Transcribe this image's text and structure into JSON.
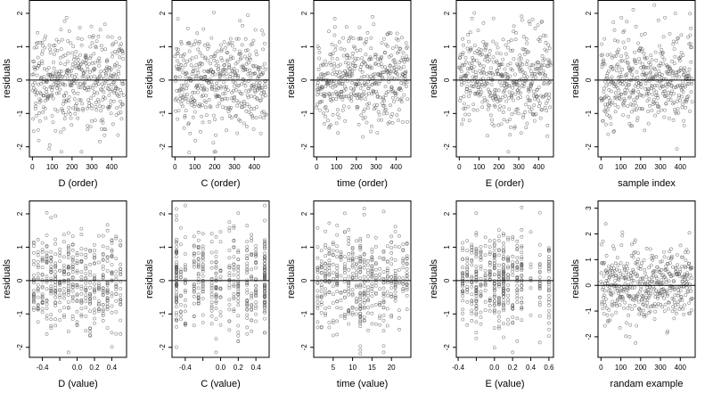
{
  "figure": {
    "n_points": 460,
    "point_color": "#555555",
    "line_color": "#000000"
  },
  "chart_data": [
    {
      "type": "scatter",
      "xlabel": "D (order)",
      "ylabel": "residuals",
      "xlim": [
        -15,
        475
      ],
      "ylim": [
        -2.3,
        2.4
      ],
      "xticks": [
        0,
        100,
        200,
        300,
        400
      ],
      "xtick_labels": [
        "0",
        "100",
        "200",
        "300",
        "400"
      ],
      "yticks": [
        -2,
        -1,
        0,
        1,
        2
      ],
      "ytick_labels": [
        "-2",
        "-1",
        "0",
        "1",
        "2"
      ],
      "hline": 0,
      "x_mode": "index",
      "x_range": [
        0,
        460
      ]
    },
    {
      "type": "scatter",
      "xlabel": "C (order)",
      "ylabel": "residuals",
      "xlim": [
        -15,
        475
      ],
      "ylim": [
        -2.3,
        2.4
      ],
      "xticks": [
        0,
        100,
        200,
        300,
        400
      ],
      "xtick_labels": [
        "0",
        "100",
        "200",
        "300",
        "400"
      ],
      "yticks": [
        -2,
        -1,
        0,
        1,
        2
      ],
      "ytick_labels": [
        "-2",
        "-1",
        "0",
        "1",
        "2"
      ],
      "hline": 0,
      "x_mode": "index",
      "x_range": [
        0,
        460
      ]
    },
    {
      "type": "scatter",
      "xlabel": "time (order)",
      "ylabel": "residuals",
      "xlim": [
        -15,
        475
      ],
      "ylim": [
        -2.3,
        2.4
      ],
      "xticks": [
        0,
        100,
        200,
        300,
        400
      ],
      "xtick_labels": [
        "0",
        "100",
        "200",
        "300",
        "400"
      ],
      "yticks": [
        -2,
        -1,
        0,
        1,
        2
      ],
      "ytick_labels": [
        "-2",
        "-1",
        "0",
        "1",
        "2"
      ],
      "hline": 0,
      "x_mode": "index",
      "x_range": [
        0,
        460
      ]
    },
    {
      "type": "scatter",
      "xlabel": "E (order)",
      "ylabel": "residuals",
      "xlim": [
        -15,
        475
      ],
      "ylim": [
        -2.3,
        2.4
      ],
      "xticks": [
        0,
        100,
        200,
        300,
        400
      ],
      "xtick_labels": [
        "0",
        "100",
        "200",
        "300",
        "400"
      ],
      "yticks": [
        -2,
        -1,
        0,
        1,
        2
      ],
      "ytick_labels": [
        "-2",
        "-1",
        "0",
        "1",
        "2"
      ],
      "hline": 0,
      "x_mode": "index",
      "x_range": [
        0,
        460
      ]
    },
    {
      "type": "scatter",
      "xlabel": "sample index",
      "ylabel": "residuals",
      "xlim": [
        -15,
        475
      ],
      "ylim": [
        -2.3,
        2.4
      ],
      "xticks": [
        0,
        100,
        200,
        300,
        400
      ],
      "xtick_labels": [
        "0",
        "100",
        "200",
        "300",
        "400"
      ],
      "yticks": [
        -2,
        -1,
        0,
        1,
        2
      ],
      "ytick_labels": [
        "-2",
        "-1",
        "0",
        "1",
        "2"
      ],
      "hline": 0,
      "x_mode": "index",
      "x_range": [
        0,
        460
      ]
    },
    {
      "type": "scatter",
      "xlabel": "D (value)",
      "ylabel": "residuals",
      "xlim": [
        -0.55,
        0.57
      ],
      "ylim": [
        -2.3,
        2.4
      ],
      "xticks": [
        -0.4,
        -0.2,
        0.0,
        0.2,
        0.4
      ],
      "xtick_labels": [
        "-0.4",
        "",
        "0.0",
        "0.2",
        "0.4"
      ],
      "yticks": [
        -2,
        -1,
        0,
        1,
        2
      ],
      "ytick_labels": [
        "-2",
        "-1",
        "0",
        "1",
        "2"
      ],
      "hline": 0,
      "x_mode": "discrete",
      "x_values": [
        -0.5,
        -0.45,
        -0.4,
        -0.35,
        -0.3,
        -0.25,
        -0.2,
        -0.15,
        -0.1,
        -0.05,
        0.0,
        0.05,
        0.1,
        0.15,
        0.2,
        0.25,
        0.3,
        0.35,
        0.4,
        0.45,
        0.5
      ]
    },
    {
      "type": "scatter",
      "xlabel": "C (value)",
      "ylabel": "residuals",
      "xlim": [
        -0.55,
        0.55
      ],
      "ylim": [
        -2.3,
        2.4
      ],
      "xticks": [
        -0.4,
        -0.2,
        0.0,
        0.2,
        0.4
      ],
      "xtick_labels": [
        "-0.4",
        "",
        "0.0",
        "0.2",
        "0.4"
      ],
      "yticks": [
        -2,
        -1,
        0,
        1,
        2
      ],
      "ytick_labels": [
        "-2",
        "-1",
        "0",
        "1",
        "2"
      ],
      "hline": 0,
      "x_mode": "discrete",
      "x_values": [
        -0.5,
        -0.5,
        -0.5,
        -0.45,
        -0.4,
        -0.3,
        -0.25,
        -0.2,
        -0.1,
        -0.05,
        0.0,
        0.1,
        0.15,
        0.2,
        0.3,
        0.35,
        0.4,
        0.5,
        0.5,
        0.5
      ]
    },
    {
      "type": "scatter",
      "xlabel": "time (value)",
      "ylabel": "residuals",
      "xlim": [
        0,
        25
      ],
      "ylim": [
        -2.3,
        2.4
      ],
      "xticks": [
        5,
        10,
        15,
        20
      ],
      "xtick_labels": [
        "5",
        "10",
        "15",
        "20"
      ],
      "yticks": [
        -2,
        -1,
        0,
        1,
        2
      ],
      "ytick_labels": [
        "-2",
        "-1",
        "0",
        "1",
        "2"
      ],
      "hline": 0,
      "x_mode": "discrete",
      "x_values": [
        1,
        2,
        3,
        4,
        5,
        6,
        7,
        8,
        9,
        10,
        11,
        12,
        12,
        13,
        14,
        15,
        16,
        17,
        18,
        19,
        20,
        21,
        22,
        23,
        24
      ]
    },
    {
      "type": "scatter",
      "xlabel": "E (value)",
      "ylabel": "residuals",
      "xlim": [
        -0.42,
        0.65
      ],
      "ylim": [
        -2.3,
        2.4
      ],
      "xticks": [
        -0.4,
        -0.2,
        0.0,
        0.2,
        0.4,
        0.6
      ],
      "xtick_labels": [
        "-0.4",
        "",
        "0.0",
        "0.2",
        "0.4",
        "0.6"
      ],
      "yticks": [
        -2,
        -1,
        0,
        1,
        2
      ],
      "ytick_labels": [
        "-2",
        "-1",
        "0",
        "1",
        "2"
      ],
      "hline": 0,
      "x_mode": "discrete",
      "x_values": [
        -0.35,
        -0.3,
        -0.25,
        -0.2,
        -0.2,
        -0.15,
        -0.1,
        -0.05,
        0.0,
        0.0,
        0.05,
        0.1,
        0.1,
        0.15,
        0.2,
        0.25,
        0.3,
        0.4,
        0.5,
        0.6
      ]
    },
    {
      "type": "scatter",
      "xlabel": "randam example",
      "ylabel": "residuals",
      "xlim": [
        -15,
        475
      ],
      "ylim": [
        -2.8,
        3.3
      ],
      "xticks": [
        0,
        100,
        200,
        300,
        400
      ],
      "xtick_labels": [
        "0",
        "100",
        "200",
        "300",
        "400"
      ],
      "yticks": [
        -2,
        -1,
        0,
        1,
        2,
        3
      ],
      "ytick_labels": [
        "-2",
        "-1",
        "0",
        "1",
        "2",
        "3"
      ],
      "hline": 0,
      "x_mode": "index",
      "x_range": [
        0,
        460
      ]
    }
  ]
}
